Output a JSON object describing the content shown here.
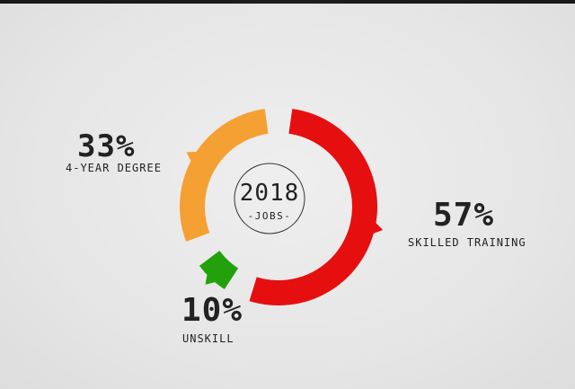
{
  "center": {
    "year": "2018",
    "subtitle": "-JOBS-"
  },
  "colors": {
    "background": "#e6e6e6",
    "text": "#222222"
  },
  "chart_data": {
    "type": "pie",
    "title": "",
    "slices": [
      {
        "label": "SKILLED TRAINING",
        "value": 57,
        "display": "57%",
        "color": "#e60f0f"
      },
      {
        "label": "UNSKILL",
        "value": 10,
        "display": "10%",
        "color": "#22a10c"
      },
      {
        "label": "4-YEAR DEGREE",
        "value": 33,
        "display": "33%",
        "color": "#f5a033"
      }
    ]
  }
}
